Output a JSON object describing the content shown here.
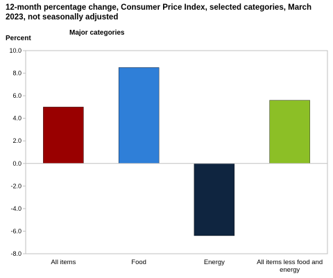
{
  "chart_data": {
    "type": "bar",
    "title": "12-month percentage change, Consumer Price Index, selected categories, March 2023, not seasonally adjusted",
    "subtitle": "Major categories",
    "ylabel": "Percent",
    "xlabel": "",
    "ylim": [
      -8.0,
      10.0
    ],
    "yticks": [
      "10.0",
      "8.0",
      "6.0",
      "4.0",
      "2.0",
      "0.0",
      "-2.0",
      "-4.0",
      "-6.0",
      "-8.0"
    ],
    "categories": [
      [
        "All items"
      ],
      [
        "Food"
      ],
      [
        "Energy"
      ],
      [
        "All items less food and",
        "energy"
      ]
    ],
    "values": [
      5.0,
      8.5,
      -6.4,
      5.6
    ],
    "colors": [
      "#990000",
      "#2f7fd8",
      "#0f2540",
      "#8cbf26"
    ],
    "grid": false
  }
}
